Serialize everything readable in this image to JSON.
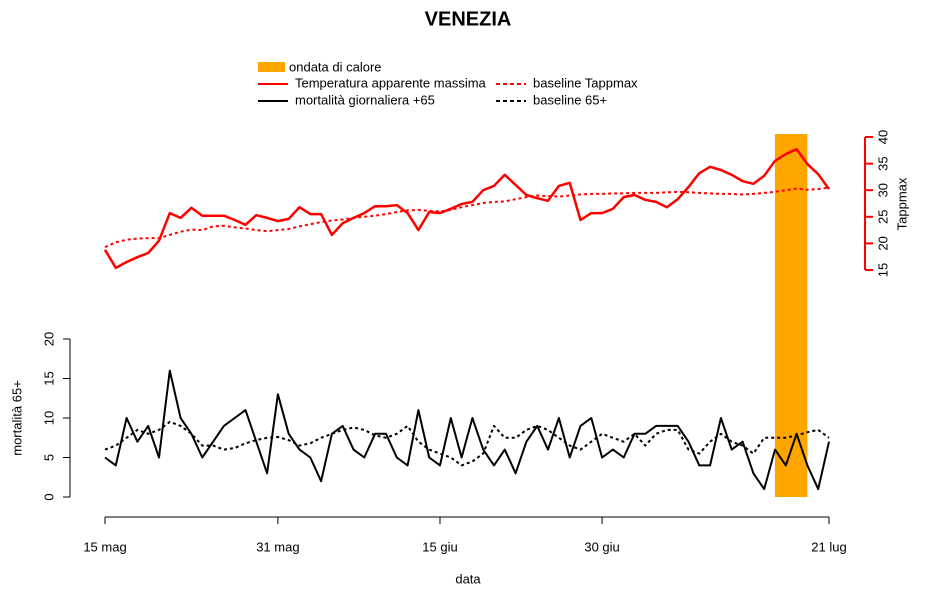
{
  "chart_data": {
    "type": "line",
    "title": "VENEZIA",
    "x_label": "data",
    "y_label": "mortalità 65+",
    "y2_label": "Tappmax",
    "categories": [
      "15 mag",
      null,
      null,
      null,
      null,
      null,
      null,
      null,
      null,
      null,
      null,
      null,
      null,
      null,
      null,
      null,
      "31 mag",
      null,
      null,
      null,
      null,
      null,
      null,
      null,
      null,
      null,
      null,
      null,
      null,
      null,
      null,
      "15 giu",
      null,
      null,
      null,
      null,
      null,
      null,
      null,
      null,
      null,
      null,
      null,
      null,
      null,
      null,
      "30 giu",
      null,
      null,
      null,
      null,
      null,
      null,
      null,
      null,
      null,
      null,
      null,
      null,
      null,
      null,
      null,
      null,
      null,
      null,
      null,
      null,
      "21 lug"
    ],
    "highlight": {
      "name": "ondata di calore",
      "color": "#ffa500",
      "from": 62,
      "to": 65
    },
    "series": [
      {
        "name": "Temperatura apparente massima",
        "color": "#ff0000",
        "dash": false,
        "axis": "y2",
        "values": [
          18.8,
          15.4,
          16.5,
          17.4,
          18.2,
          20.5,
          25.7,
          24.8,
          26.7,
          25.2,
          25.2,
          25.2,
          24.4,
          23.5,
          25.3,
          24.8,
          24.2,
          24.6,
          26.8,
          25.5,
          25.5,
          21.6,
          23.8,
          24.8,
          25.7,
          27.0,
          27.0,
          27.2,
          25.7,
          22.5,
          25.9,
          25.7,
          26.5,
          27.4,
          27.8,
          30.0,
          30.8,
          32.9,
          31.0,
          29.1,
          28.5,
          28.0,
          30.8,
          31.4,
          24.4,
          25.7,
          25.7,
          26.5,
          28.7,
          29.1,
          28.2,
          27.8,
          26.8,
          28.3,
          30.6,
          33.2,
          34.4,
          33.8,
          32.9,
          31.7,
          31.2,
          32.7,
          35.5,
          36.8,
          37.7,
          34.9,
          33.0,
          30.2
        ]
      },
      {
        "name": "baseline Tappmax",
        "color": "#ff0000",
        "dash": true,
        "axis": "y2",
        "values": [
          19.3,
          20.2,
          20.7,
          20.9,
          21.0,
          21.0,
          21.6,
          22.2,
          22.6,
          22.5,
          23.2,
          23.3,
          23.0,
          22.8,
          22.5,
          22.3,
          22.5,
          22.7,
          23.2,
          23.6,
          24.0,
          24.3,
          24.5,
          24.8,
          25.0,
          25.2,
          25.5,
          25.9,
          26.2,
          26.3,
          26.1,
          26.0,
          26.3,
          26.8,
          27.2,
          27.6,
          27.8,
          27.9,
          28.3,
          28.7,
          29.0,
          28.9,
          28.8,
          29.0,
          29.2,
          29.3,
          29.3,
          29.4,
          29.4,
          29.5,
          29.5,
          29.5,
          29.6,
          29.7,
          29.6,
          29.5,
          29.4,
          29.3,
          29.3,
          29.2,
          29.3,
          29.5,
          29.7,
          30.0,
          30.3,
          30.1,
          30.2,
          30.5
        ]
      },
      {
        "name": "mortalità giornaliera +65",
        "color": "#000000",
        "dash": false,
        "values": [
          5,
          4,
          10,
          7,
          9,
          5,
          16,
          10,
          8,
          5,
          7,
          9,
          10,
          11,
          7,
          3,
          13,
          8,
          6,
          5,
          2,
          8,
          9,
          6,
          5,
          8,
          8,
          5,
          4,
          11,
          5,
          4,
          10,
          5,
          10,
          6,
          4,
          6,
          3,
          7,
          9,
          6,
          10,
          5,
          9,
          10,
          5,
          6,
          5,
          8,
          8,
          9,
          9,
          9,
          7,
          4,
          4,
          10,
          6,
          7,
          3,
          1,
          6,
          4,
          8,
          4,
          1,
          7
        ]
      },
      {
        "name": "baseline 65+",
        "color": "#000000",
        "dash": true,
        "values": [
          6,
          6.5,
          7.5,
          8.5,
          8,
          8.5,
          9.5,
          9,
          8,
          6.5,
          6.5,
          6,
          6.2,
          6.8,
          7.2,
          7.5,
          7.6,
          7.2,
          6.5,
          6.8,
          7.5,
          8,
          8.5,
          8.8,
          8.5,
          7.8,
          7.5,
          8,
          9,
          7,
          6,
          5.5,
          5,
          4,
          4.5,
          5.5,
          9,
          7.5,
          7.5,
          8.5,
          9,
          8.5,
          7.5,
          6.5,
          6,
          7,
          8,
          7.5,
          7,
          8,
          6.5,
          8,
          8.5,
          8.5,
          6,
          5.5,
          7,
          8,
          7,
          6.5,
          5.5,
          7.5,
          7.5,
          7.5,
          7.8,
          8.2,
          8.5,
          7.5
        ]
      }
    ],
    "ylim": [
      0,
      20
    ],
    "yticks": [
      0,
      5,
      10,
      15,
      20
    ],
    "y2lim": [
      15,
      40
    ],
    "y2ticks": [
      15,
      20,
      25,
      30,
      35,
      40
    ]
  }
}
